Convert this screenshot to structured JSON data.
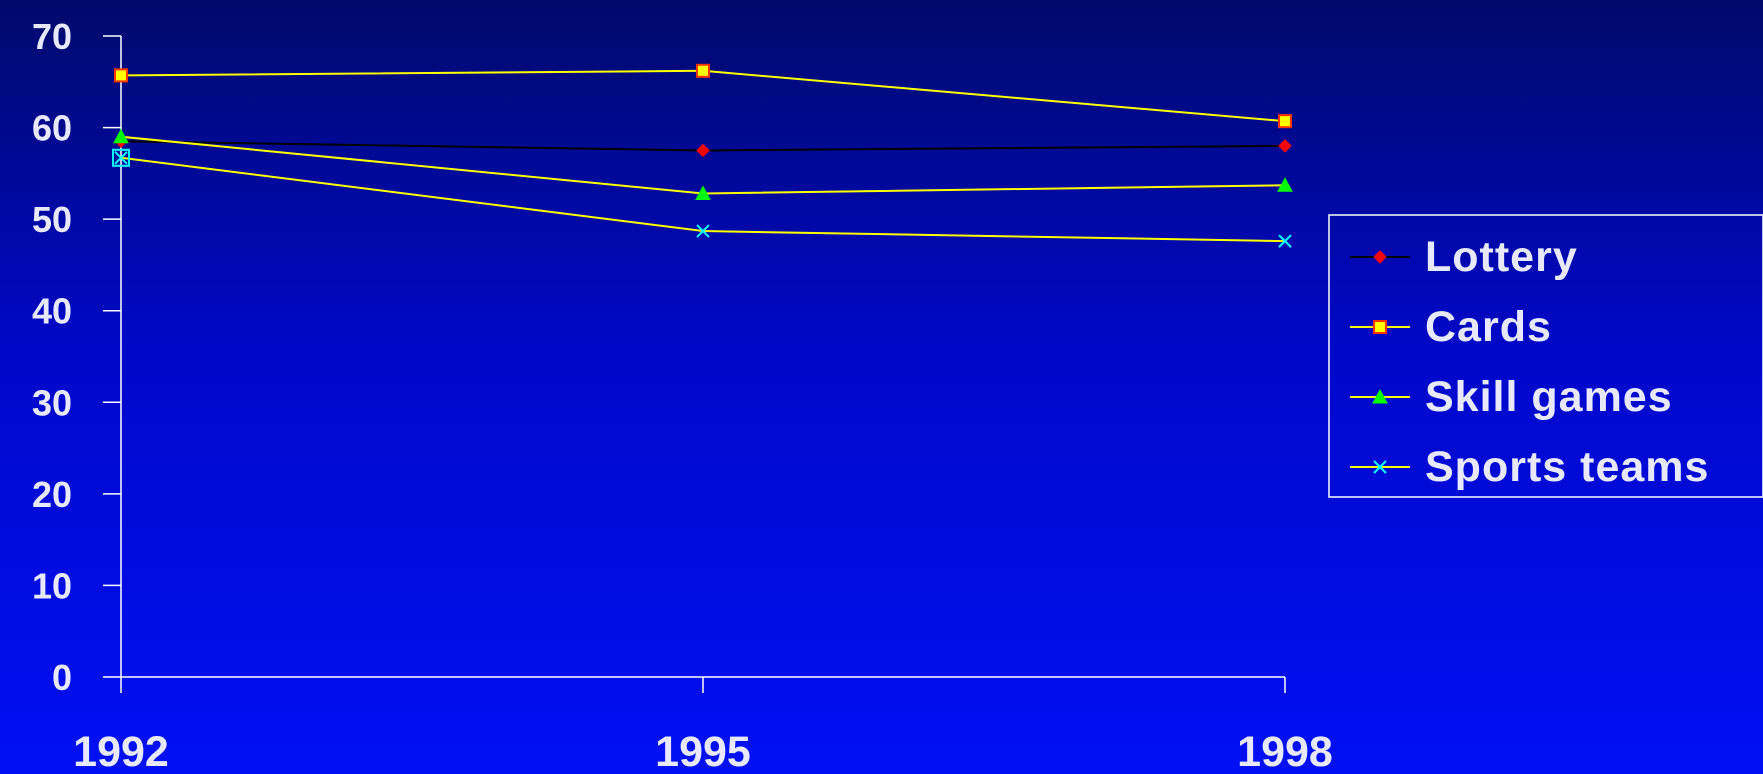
{
  "chart_data": {
    "type": "line",
    "title": "",
    "xlabel": "",
    "ylabel": "",
    "categories": [
      "1992",
      "1995",
      "1998"
    ],
    "ylim": [
      0,
      70
    ],
    "yticks": [
      0,
      10,
      20,
      30,
      40,
      50,
      60,
      70
    ],
    "grid": false,
    "legend_position": "right",
    "series": [
      {
        "name": "Lottery",
        "values": [
          58.5,
          57.5,
          58
        ],
        "line_color": "#000000",
        "marker": "diamond",
        "marker_color": "#ff0000"
      },
      {
        "name": "Cards",
        "values": [
          65.7,
          66.2,
          60.7
        ],
        "line_color": "#ffff00",
        "marker": "square",
        "marker_color": "#ffff00"
      },
      {
        "name": "Skill games",
        "values": [
          59,
          52.8,
          53.7
        ],
        "line_color": "#ffff00",
        "marker": "triangle",
        "marker_color": "#00ff00"
      },
      {
        "name": "Sports teams",
        "values": [
          56.7,
          48.7,
          47.6
        ],
        "line_color": "#ffff00",
        "marker": "x",
        "marker_color": "#00ffff"
      }
    ]
  }
}
